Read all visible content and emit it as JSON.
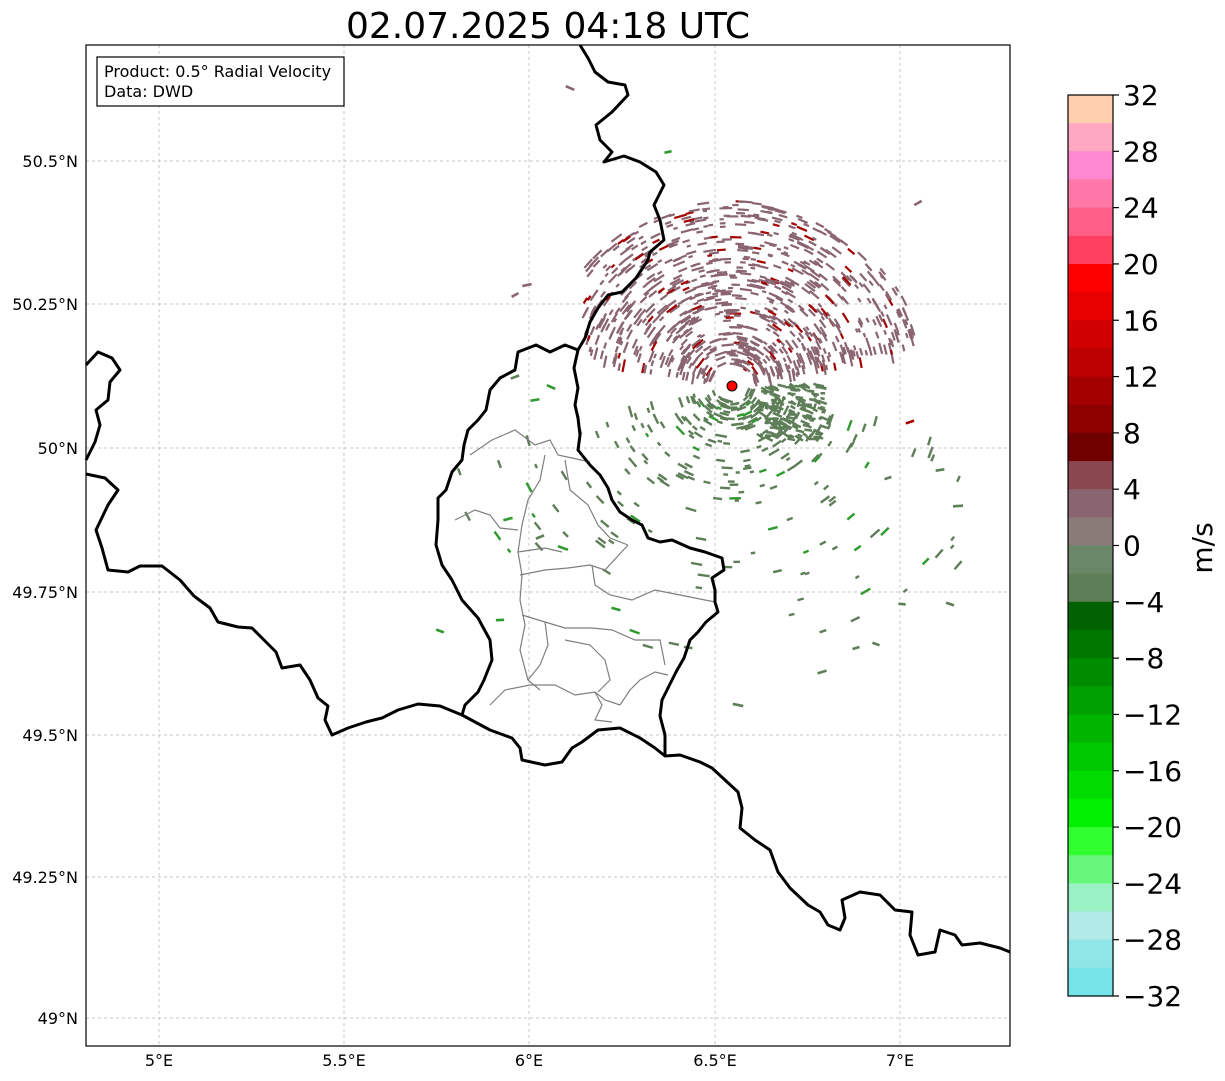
{
  "title": "02.07.2025 04:18 UTC",
  "info": {
    "product": "Product: 0.5° Radial Velocity",
    "source": "Data: DWD"
  },
  "axes": {
    "lon_ticks": [
      "5°E",
      "5.5°E",
      "6°E",
      "6.5°E",
      "7°E"
    ],
    "lat_ticks": [
      "50.5°N",
      "50.25°N",
      "50°N",
      "49.75°N",
      "49.5°N",
      "49.25°N",
      "49°N"
    ]
  },
  "radar_site": {
    "color": "#ff0000"
  },
  "colorbar": {
    "unit": "m/s",
    "tick_labels": [
      "32",
      "28",
      "24",
      "20",
      "16",
      "12",
      "8",
      "4",
      "0",
      "−4",
      "−8",
      "−12",
      "−16",
      "−20",
      "−24",
      "−28",
      "−32"
    ],
    "colors_top_to_bottom": [
      "#ffcfb0",
      "#ffa8c4",
      "#ff88d0",
      "#ff78a8",
      "#ff6088",
      "#ff4060",
      "#ff0000",
      "#e80000",
      "#d00000",
      "#bc0000",
      "#a40000",
      "#8c0000",
      "#700000",
      "#8a4750",
      "#8a6470",
      "#8a7a78",
      "#6a8868",
      "#5e7e58",
      "#006200",
      "#007800",
      "#008c00",
      "#00a000",
      "#00b400",
      "#00c800",
      "#00dc00",
      "#00f000",
      "#30ff30",
      "#66f77a",
      "#9af2c4",
      "#b2eaea",
      "#8ee6e6",
      "#74e4e8"
    ]
  },
  "echo_colors": {
    "inbound": "#5e7e58",
    "outbound": "#8a6470",
    "strong_inbound": "#2e9a2e",
    "strong_outbound": "#a40000"
  }
}
